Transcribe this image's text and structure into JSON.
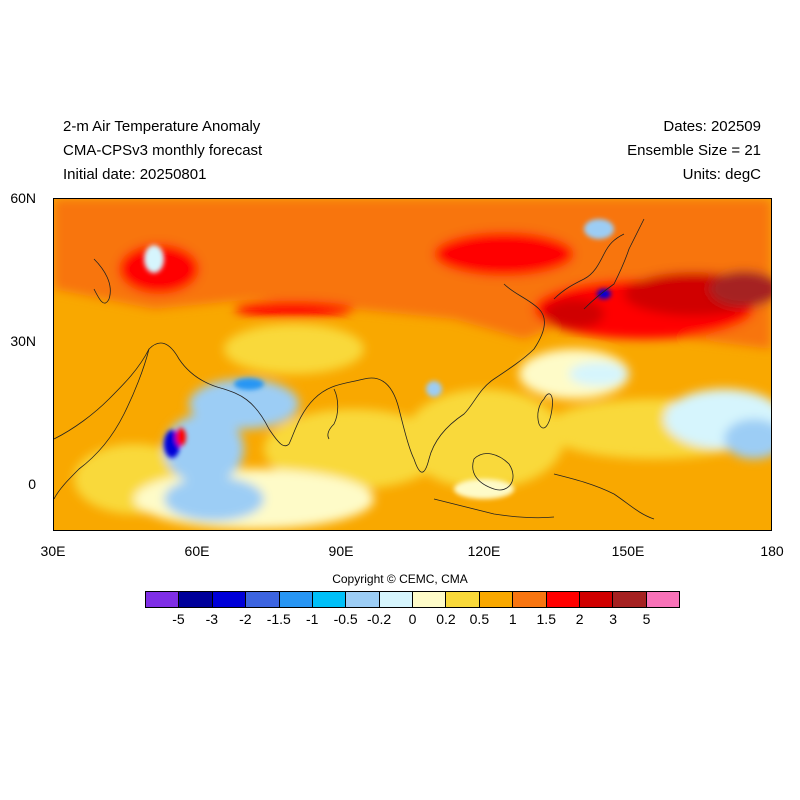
{
  "header": {
    "title_line1": "2-m Air Temperature Anomaly",
    "title_line2": "CMA-CPSv3 monthly forecast",
    "title_line3": "Initial date: 20250801",
    "dates": "Dates: 202509",
    "ensemble": "Ensemble Size = 21",
    "units": "Units: degC"
  },
  "axes": {
    "lat_labels": [
      "60N",
      "30N",
      "0"
    ],
    "lon_labels": [
      "30E",
      "60E",
      "90E",
      "120E",
      "150E",
      "180"
    ],
    "lon_range": [
      30,
      180
    ],
    "lat_range": [
      -10,
      60
    ]
  },
  "copyright": "Copyright © CEMC, CMA",
  "colorbar": {
    "colors": [
      "#7f2ee6",
      "#00009a",
      "#0000d8",
      "#3c64e0",
      "#2896f4",
      "#00c0f8",
      "#9ccdf5",
      "#d6f5fd",
      "#fefbc8",
      "#f9d93a",
      "#f9a800",
      "#f87510",
      "#ff0000",
      "#d00000",
      "#a52121",
      "#f872b8"
    ],
    "labels": [
      "-5",
      "-3",
      "-2",
      "-1.5",
      "-1",
      "-0.5",
      "-0.2",
      "0",
      "0.2",
      "0.5",
      "1",
      "1.5",
      "2",
      "3",
      "5"
    ]
  }
}
